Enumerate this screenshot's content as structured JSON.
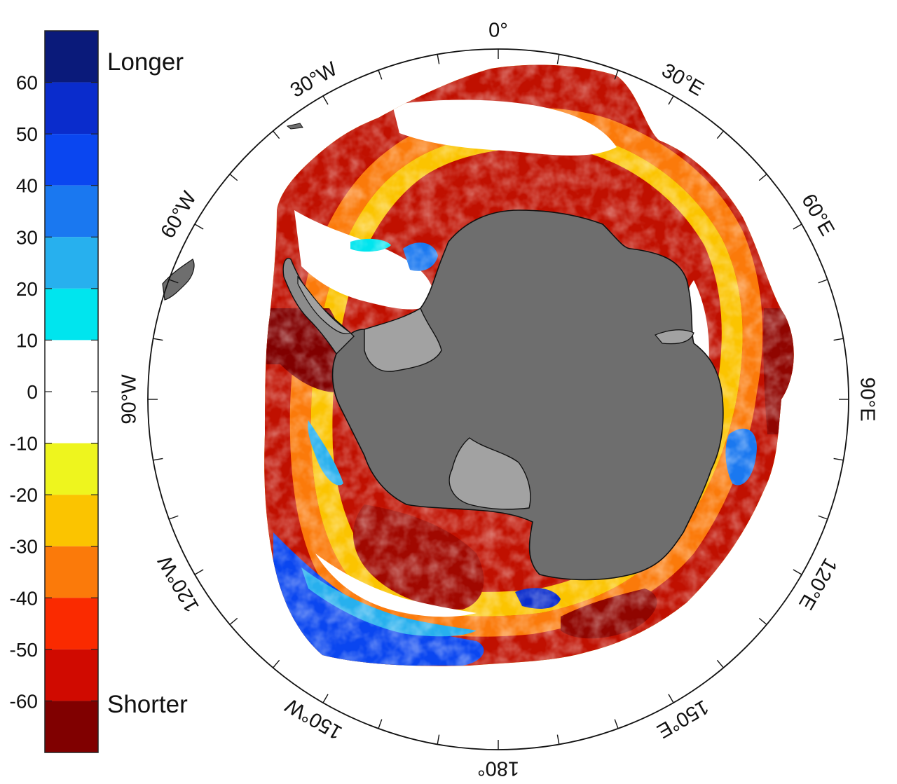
{
  "colorbar": {
    "ticks": [
      {
        "value": 60,
        "label": "60"
      },
      {
        "value": 50,
        "label": "50"
      },
      {
        "value": 40,
        "label": "40"
      },
      {
        "value": 30,
        "label": "30"
      },
      {
        "value": 20,
        "label": "20"
      },
      {
        "value": 10,
        "label": "10"
      },
      {
        "value": 0,
        "label": "0"
      },
      {
        "value": -10,
        "label": "-10"
      },
      {
        "value": -20,
        "label": "-20"
      },
      {
        "value": -30,
        "label": "-30"
      },
      {
        "value": -40,
        "label": "-40"
      },
      {
        "value": -50,
        "label": "-50"
      },
      {
        "value": -60,
        "label": "-60"
      }
    ],
    "range": [
      -70,
      70
    ],
    "bands": [
      {
        "from": 60,
        "to": 70,
        "color": "#0a1a7a"
      },
      {
        "from": 50,
        "to": 60,
        "color": "#0a2ccc"
      },
      {
        "from": 40,
        "to": 50,
        "color": "#0a46f0"
      },
      {
        "from": 30,
        "to": 40,
        "color": "#1a78f0"
      },
      {
        "from": 20,
        "to": 30,
        "color": "#27b0ee"
      },
      {
        "from": 10,
        "to": 20,
        "color": "#00e5ee"
      },
      {
        "from": -10,
        "to": 10,
        "color": "#ffffff"
      },
      {
        "from": -20,
        "to": -10,
        "color": "#eef51e"
      },
      {
        "from": -30,
        "to": -20,
        "color": "#fbc400"
      },
      {
        "from": -40,
        "to": -30,
        "color": "#fb7a0a"
      },
      {
        "from": -50,
        "to": -40,
        "color": "#fa2a00"
      },
      {
        "from": -60,
        "to": -50,
        "color": "#d00a00"
      },
      {
        "from": -70,
        "to": -60,
        "color": "#800000"
      }
    ],
    "top_label": "Longer",
    "bottom_label": "Shorter"
  },
  "map": {
    "projection": "south polar stereographic",
    "longitude_labels": [
      {
        "lon": 0,
        "label": "0°"
      },
      {
        "lon": 30,
        "label": "30°E"
      },
      {
        "lon": 60,
        "label": "60°E"
      },
      {
        "lon": 90,
        "label": "90°E"
      },
      {
        "lon": 120,
        "label": "120°E"
      },
      {
        "lon": 150,
        "label": "150°E"
      },
      {
        "lon": 180,
        "label": "180°"
      },
      {
        "lon": -150,
        "label": "150°W"
      },
      {
        "lon": -120,
        "label": "120°W"
      },
      {
        "lon": -90,
        "label": "90°W"
      },
      {
        "lon": -60,
        "label": "60°W"
      },
      {
        "lon": -30,
        "label": "30°W"
      }
    ],
    "tick_interval_deg": 10,
    "colors": {
      "land": "#6e6e6e",
      "ice_shelf": "#a2a2a2",
      "coast": "#111111",
      "frame": "#111111"
    }
  }
}
